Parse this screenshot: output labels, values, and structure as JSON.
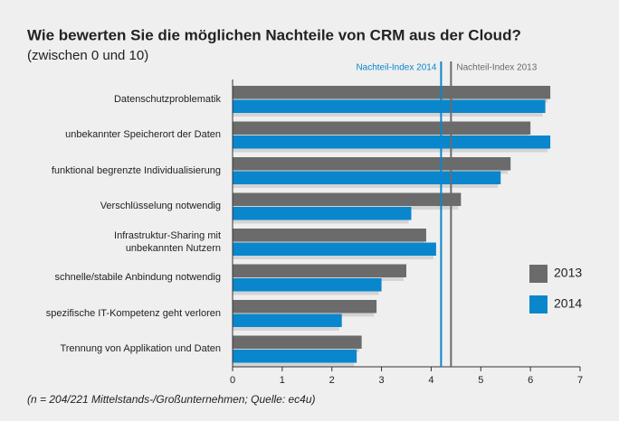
{
  "chart_data": {
    "type": "hbar",
    "title": "Wie bewerten Sie die möglichen Nachteile von CRM aus der Cloud?",
    "subtitle": "(zwischen 0 und 10)",
    "footnote": "(n = 204/221 Mittelstands-/Großunternehmen; Quelle: ec4u)",
    "categories": [
      "Datenschutzproblematik",
      "unbekannter Speicherort der Daten",
      "funktional begrenzte Individualisierung",
      "Verschlüsselung notwendig",
      "Infrastruktur-Sharing mit\nunbekannten Nutzern",
      "schnelle/stabile Anbindung notwendig",
      "spezifische IT-Kompetenz geht verloren",
      "Trennung von Applikation und Daten"
    ],
    "series": [
      {
        "name": "2013",
        "color": "#6b6b6b",
        "values": [
          6.4,
          6.0,
          5.6,
          4.6,
          3.9,
          3.5,
          2.9,
          2.6
        ]
      },
      {
        "name": "2014",
        "color": "#0a86cc",
        "values": [
          6.3,
          6.4,
          5.4,
          3.6,
          4.1,
          3.0,
          2.2,
          2.5
        ]
      }
    ],
    "reference_lines": [
      {
        "label": "Nachteil-Index 2014",
        "value": 4.2,
        "color": "#0a86cc"
      },
      {
        "label": "Nachteil-Index 2013",
        "value": 4.4,
        "color": "#6b6b6b"
      }
    ],
    "xlim": [
      0,
      7
    ],
    "xticks": [
      0,
      1,
      2,
      3,
      4,
      5,
      6,
      7
    ],
    "grid": false
  }
}
